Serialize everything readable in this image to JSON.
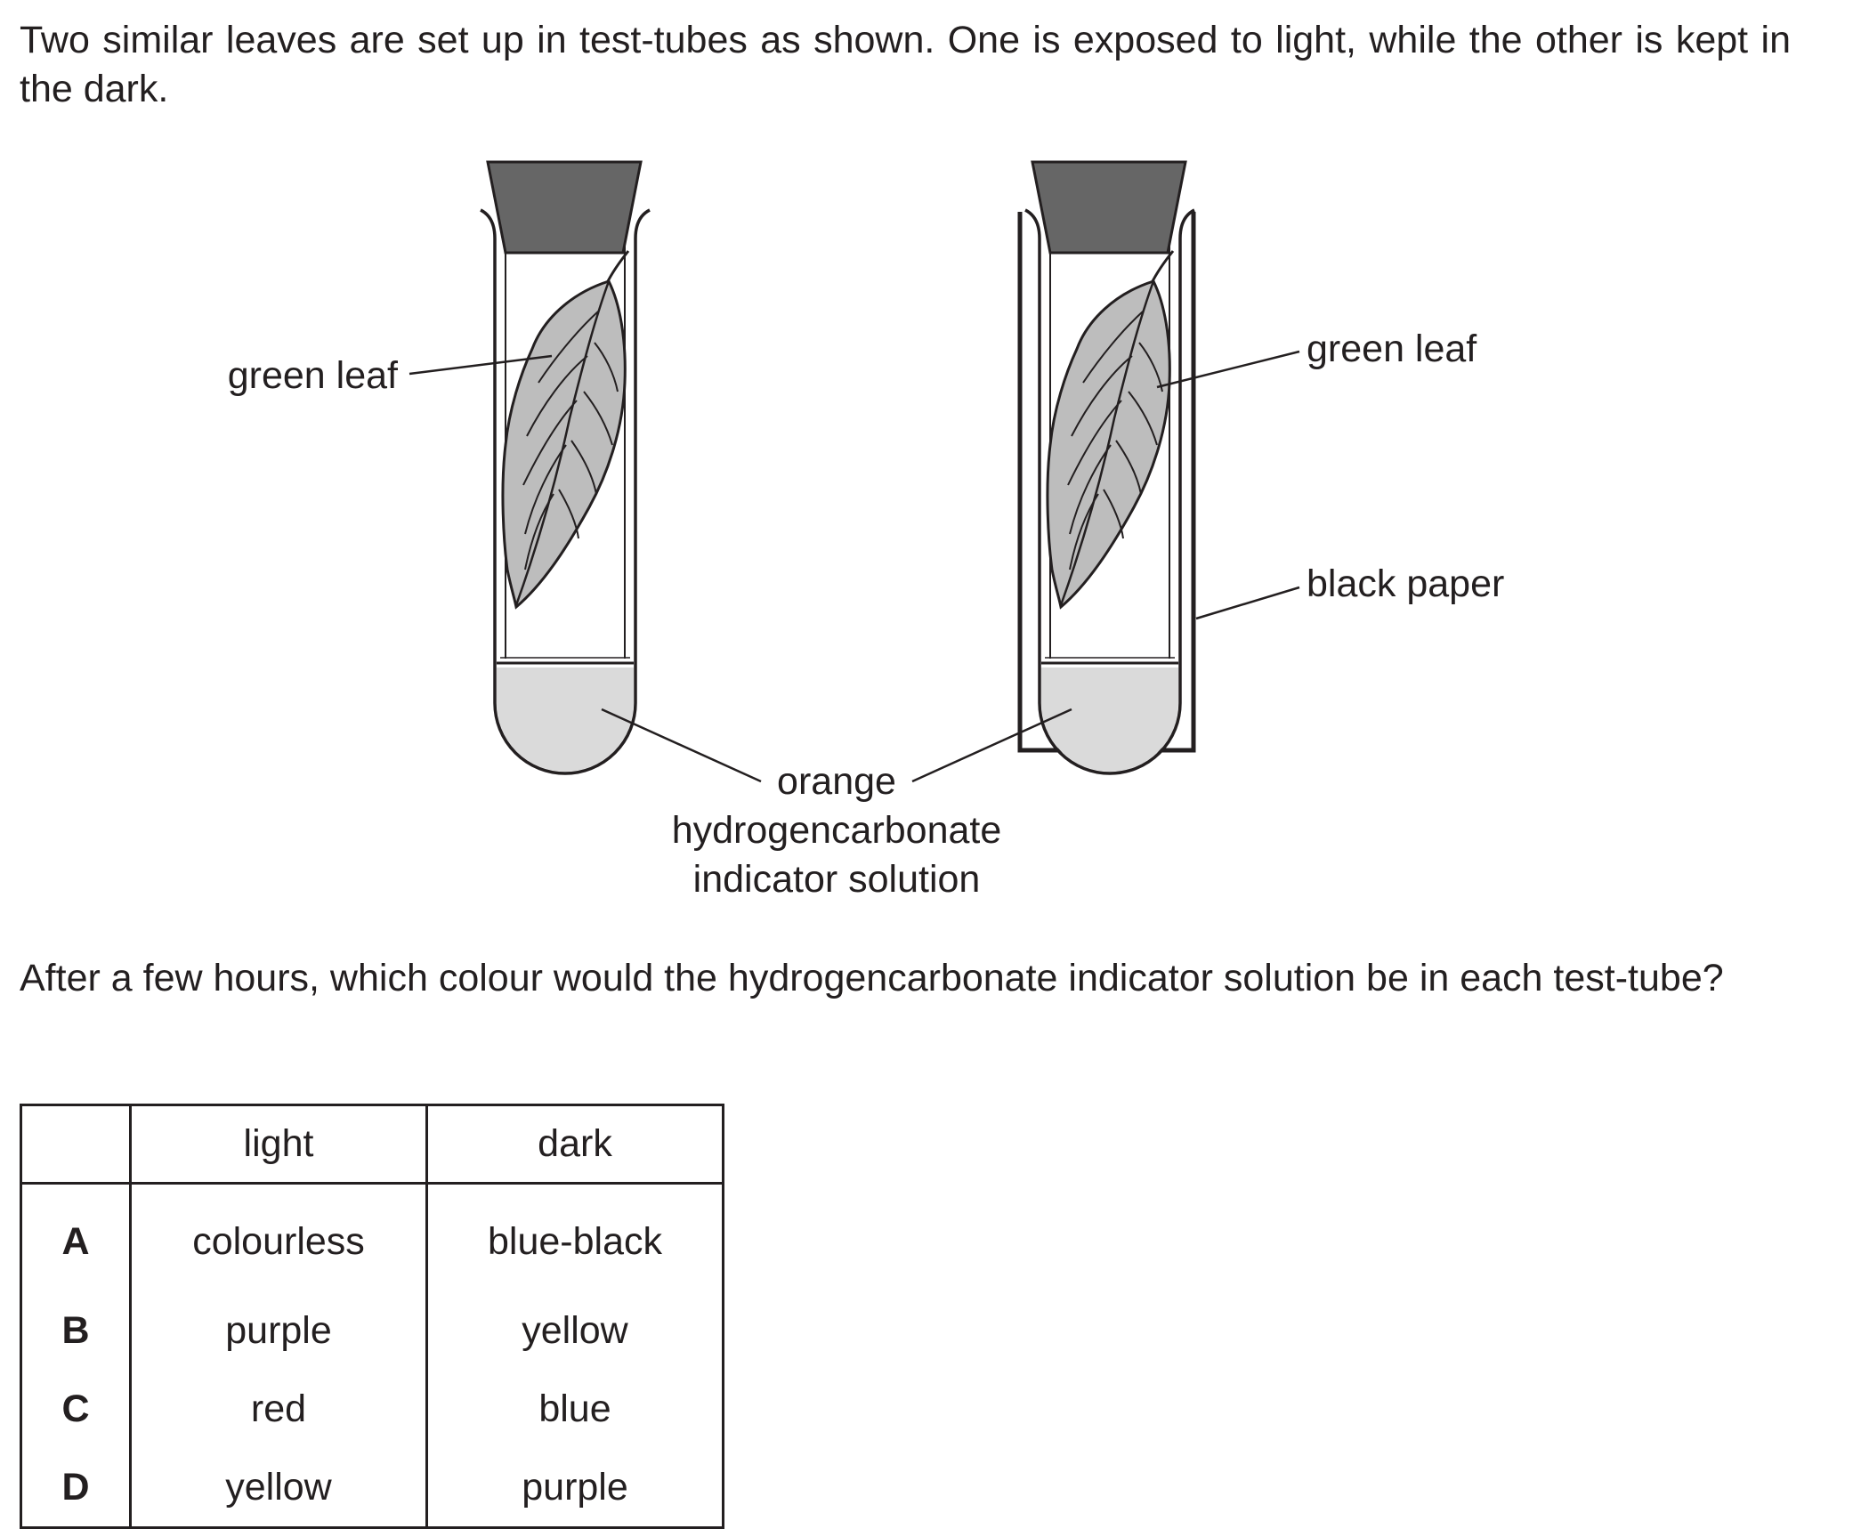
{
  "intro": "Two similar leaves are set up in test-tubes as shown. One is exposed to light, while the other is kept in the dark.",
  "figure": {
    "left_leaf_label": "green leaf",
    "right_leaf_label": "green leaf",
    "black_paper_label": "black paper",
    "solution_label": [
      "orange",
      "hydrogencarbonate",
      "indicator solution"
    ]
  },
  "question": "After a few hours, which colour would the hydrogencarbonate indicator solution be in each test-tube?",
  "table": {
    "headers": [
      "",
      "light",
      "dark"
    ],
    "rows": [
      {
        "letter": "A",
        "light": "colourless",
        "dark": "blue-black"
      },
      {
        "letter": "B",
        "light": "purple",
        "dark": "yellow"
      },
      {
        "letter": "C",
        "light": "red",
        "dark": "blue"
      },
      {
        "letter": "D",
        "light": "yellow",
        "dark": "purple"
      }
    ]
  },
  "colors": {
    "ink": "#231f20",
    "stopper": "#666666",
    "leaf": "#bdbdbd",
    "solution": "#dadada"
  }
}
